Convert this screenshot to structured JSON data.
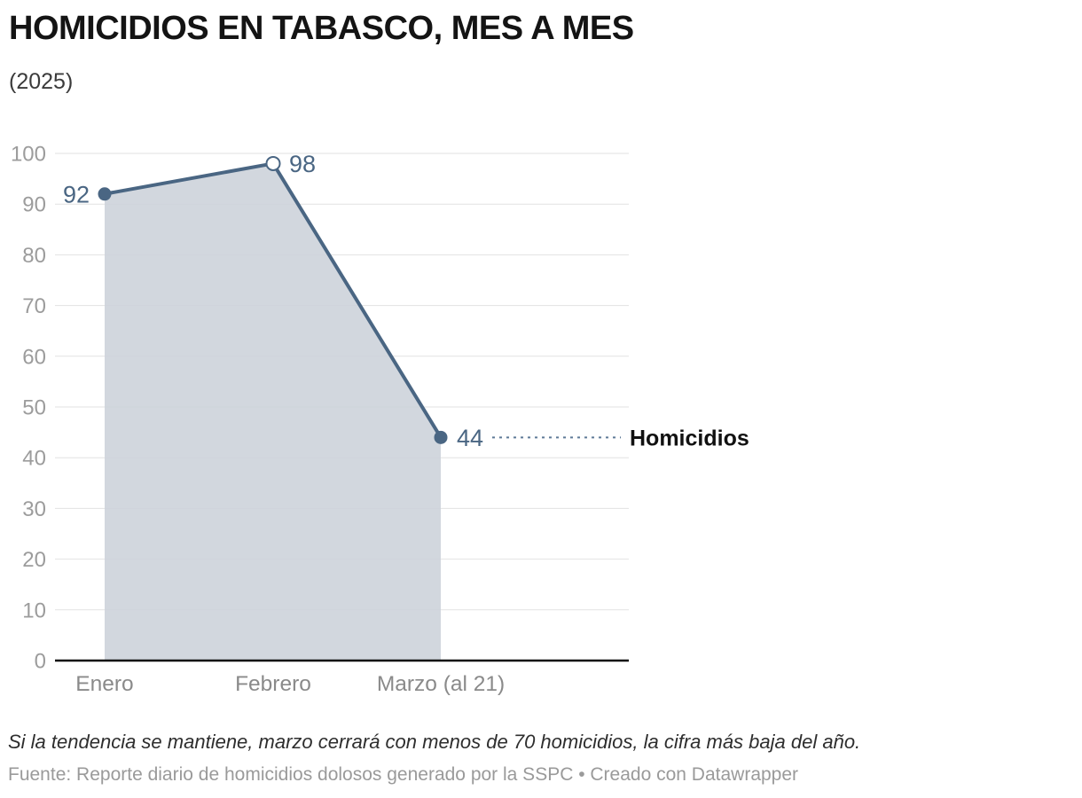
{
  "header": {
    "title": "HOMICIDIOS EN TABASCO, MES A MES",
    "subtitle": "(2025)"
  },
  "chart_data": {
    "type": "area",
    "title": "HOMICIDIOS EN TABASCO, MES A MES",
    "subtitle": "(2025)",
    "categories": [
      "Enero",
      "Febrero",
      "Marzo (al 21)"
    ],
    "series": [
      {
        "name": "Homicidios",
        "values": [
          92,
          98,
          44
        ]
      }
    ],
    "series_label": "Homicidios",
    "ylim": [
      0,
      100
    ],
    "ytick_step": 10,
    "yticks": [
      0,
      10,
      20,
      30,
      40,
      50,
      60,
      70,
      80,
      90,
      100
    ],
    "grid": true,
    "legend_position": "inline-right-of-last-point",
    "point_styles": [
      "filled",
      "open",
      "filled"
    ],
    "value_label_side": [
      "left",
      "right",
      "right"
    ],
    "colors": {
      "line": "#4a6683",
      "area": "#cdd3da",
      "value_label": "#4a6683",
      "connector": "#5f7a97",
      "grid": "#e2e2e2",
      "baseline": "#0b0b0b",
      "y_tick_label": "#9c9c9c",
      "x_tick_label": "#8a8a8a",
      "series_label": "#111111"
    }
  },
  "footer": {
    "note": "Si la tendencia se mantiene, marzo cerrará con menos de 70 homicidios, la cifra más baja del año.",
    "source": "Fuente: Reporte diario de homicidios dolosos generado por la SSPC • Creado con Datawrapper"
  }
}
